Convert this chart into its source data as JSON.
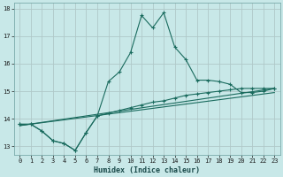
{
  "xlabel": "Humidex (Indice chaleur)",
  "xlim": [
    -0.5,
    23.5
  ],
  "ylim": [
    12.7,
    18.2
  ],
  "yticks": [
    13,
    14,
    15,
    16,
    17,
    18
  ],
  "xticks": [
    0,
    1,
    2,
    3,
    4,
    5,
    6,
    7,
    8,
    9,
    10,
    11,
    12,
    13,
    14,
    15,
    16,
    17,
    18,
    19,
    20,
    21,
    22,
    23
  ],
  "bg_color": "#c8e8e8",
  "grid_color": "#b0c8c8",
  "line_color": "#1a6b5e",
  "lines": [
    {
      "x": [
        0,
        1,
        2,
        3,
        4,
        5,
        6,
        7,
        8,
        9,
        10,
        11,
        12,
        13,
        14,
        15,
        16,
        17,
        18,
        19,
        20,
        21,
        22,
        23
      ],
      "y": [
        13.8,
        13.8,
        13.55,
        13.2,
        13.1,
        12.85,
        13.5,
        14.1,
        15.35,
        15.7,
        16.4,
        17.75,
        17.3,
        17.85,
        16.6,
        16.15,
        15.4,
        15.4,
        15.35,
        15.25,
        14.95,
        14.95,
        15.0,
        15.1
      ],
      "has_markers": true
    },
    {
      "x": [
        0,
        1,
        2,
        3,
        4,
        5,
        6,
        7,
        8,
        9,
        10,
        11,
        12,
        13,
        14,
        15,
        16,
        17,
        18,
        19,
        20,
        21,
        22,
        23
      ],
      "y": [
        13.8,
        13.8,
        13.55,
        13.2,
        13.1,
        12.85,
        13.5,
        14.1,
        14.2,
        14.3,
        14.4,
        14.5,
        14.6,
        14.65,
        14.75,
        14.85,
        14.9,
        14.95,
        15.0,
        15.05,
        15.1,
        15.1,
        15.1,
        15.1
      ],
      "has_markers": true
    },
    {
      "x": [
        0,
        23
      ],
      "y": [
        13.75,
        15.1
      ],
      "has_markers": false
    },
    {
      "x": [
        0,
        23
      ],
      "y": [
        13.75,
        14.95
      ],
      "has_markers": false
    }
  ]
}
